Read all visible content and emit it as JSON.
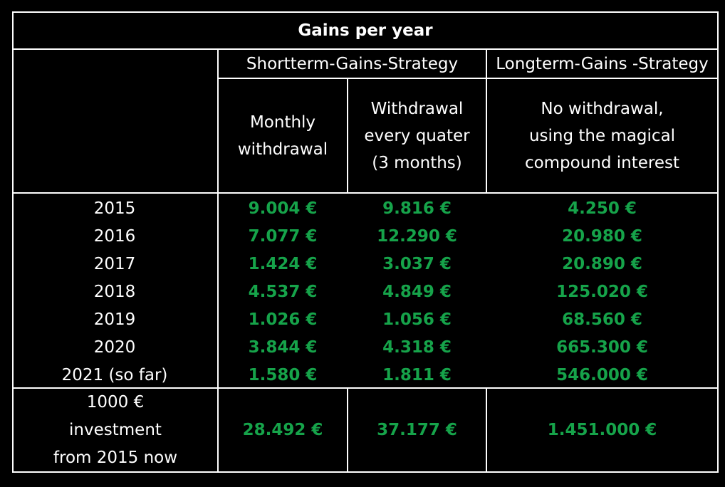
{
  "colors": {
    "background": "#000000",
    "text": "#ffffff",
    "value_green": "#16a34a",
    "grid": "#ffffff"
  },
  "chart_data": {
    "type": "table",
    "title": "Gains per year",
    "groups": [
      {
        "label": "Shortterm-Gains-Strategy",
        "columns": [
          "Monthly withdrawal",
          "Withdrawal every quater (3 months)"
        ]
      },
      {
        "label": "Longterm-Gains -Strategy",
        "columns": [
          "No withdrawal, using the magical compound interest"
        ]
      }
    ],
    "column_headers": [
      [
        "Monthly",
        "withdrawal"
      ],
      [
        "Withdrawal",
        "every quater",
        "(3 months)"
      ],
      [
        "No withdrawal,",
        "using the magical",
        "compound interest"
      ]
    ],
    "rows": [
      {
        "label": "2015",
        "values": [
          "9.004 €",
          "9.816 €",
          "4.250 €"
        ]
      },
      {
        "label": "2016",
        "values": [
          "7.077 €",
          "12.290 €",
          "20.980 €"
        ]
      },
      {
        "label": "2017",
        "values": [
          "1.424 €",
          "3.037 €",
          "20.890 €"
        ]
      },
      {
        "label": "2018",
        "values": [
          "4.537 €",
          "4.849 €",
          "125.020 €"
        ]
      },
      {
        "label": "2019",
        "values": [
          "1.026 €",
          "1.056 €",
          "68.560 €"
        ]
      },
      {
        "label": "2020",
        "values": [
          "3.844 €",
          "4.318 €",
          "665.300 €"
        ]
      },
      {
        "label": "2021 (so far)",
        "values": [
          "1.580 €",
          "1.811 €",
          "546.000 €"
        ]
      }
    ],
    "total_row": {
      "label_lines": [
        "1000 €",
        "investment",
        "from 2015 now"
      ],
      "values": [
        "28.492 €",
        "37.177 €",
        "1.451.000 €"
      ]
    }
  }
}
